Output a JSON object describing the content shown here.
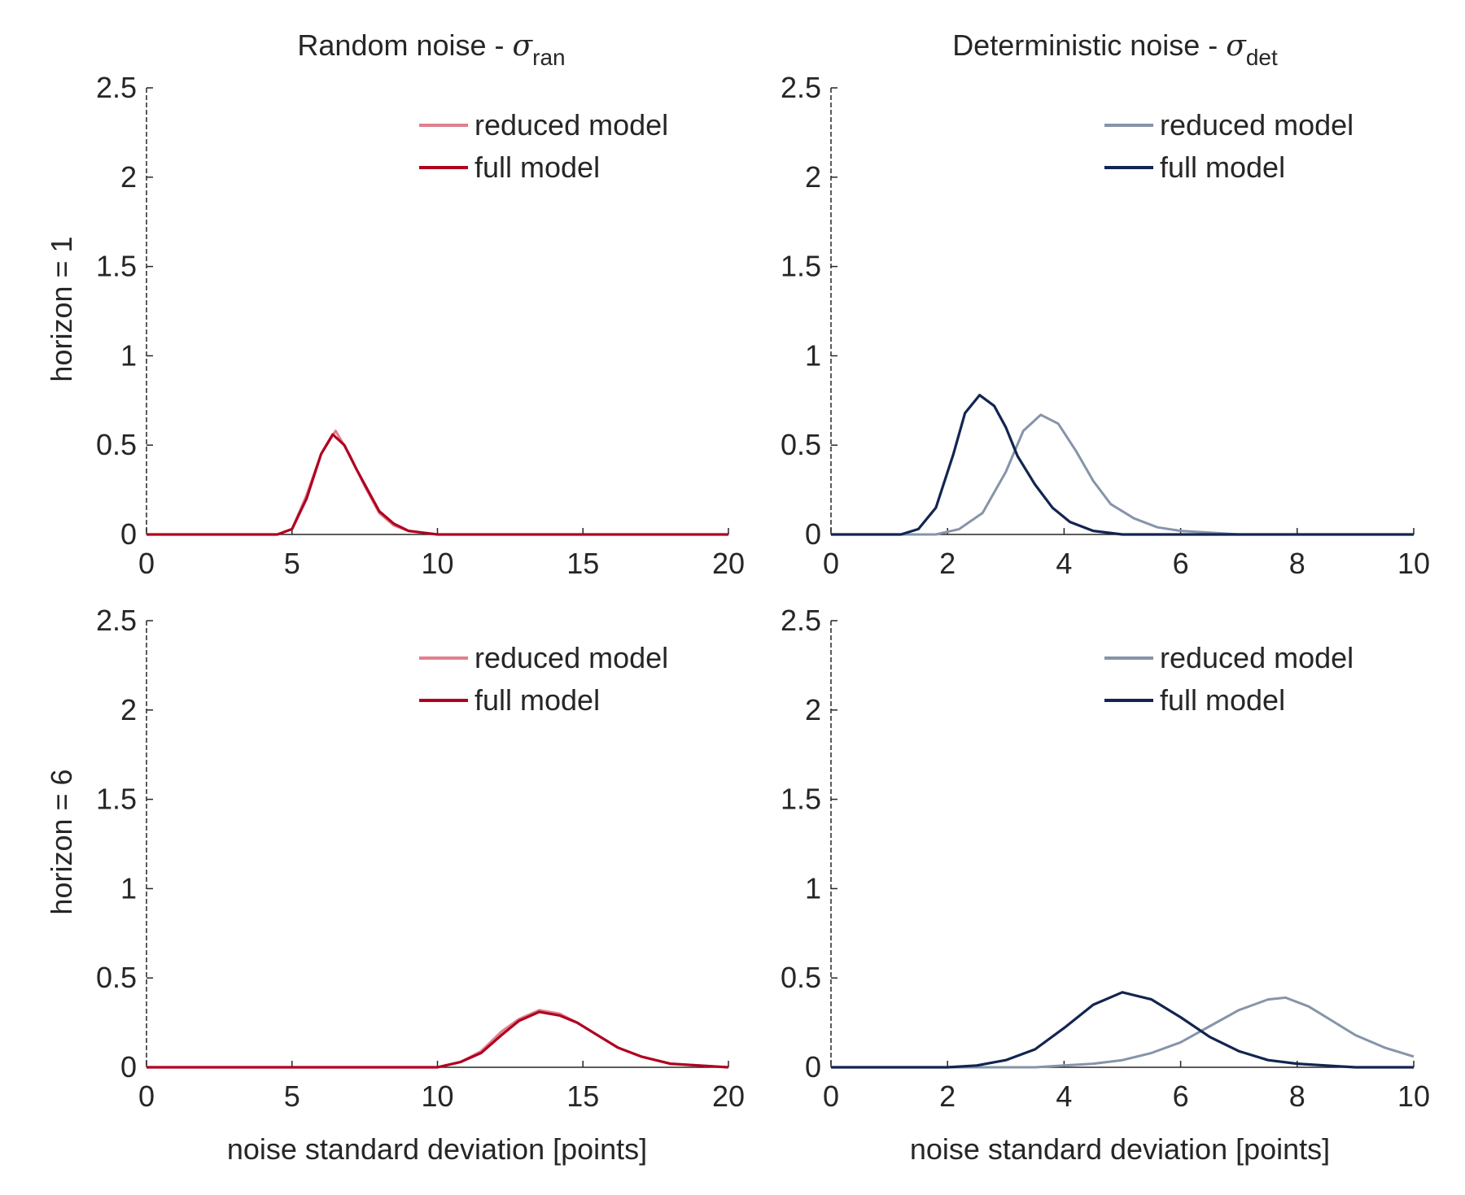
{
  "figure": {
    "column_titles": [
      {
        "main": "Random noise - ",
        "symbol": "σ",
        "subscript": "ran"
      },
      {
        "main": "Deterministic noise - ",
        "symbol": "σ",
        "subscript": "det"
      }
    ],
    "row_labels": [
      "horizon = 1",
      "horizon = 6"
    ],
    "xlabel": "noise standard deviation [points]",
    "legend": [
      "reduced model",
      "full model"
    ]
  },
  "colors": {
    "red_reduced": "#e0808e",
    "red_full": "#b00020",
    "blue_reduced": "#8694aa",
    "blue_full": "#122550",
    "axis": "#262626"
  },
  "chart_data": [
    {
      "type": "line",
      "panel": "top-left",
      "title": "Random noise - σran",
      "ylabel": "horizon = 1",
      "xlabel": "",
      "xlim": [
        0,
        20
      ],
      "ylim": [
        0,
        2.5
      ],
      "xticks": [
        "0",
        "5",
        "10",
        "15",
        "20"
      ],
      "yticks": [
        "0",
        "0.5",
        "1",
        "1.5",
        "2",
        "2.5"
      ],
      "grid": false,
      "legend_position": "top-right",
      "series": [
        {
          "name": "reduced model",
          "color": "#e0808e",
          "x": [
            0,
            4.5,
            5.0,
            5.5,
            6.0,
            6.5,
            7.0,
            7.5,
            8.0,
            8.5,
            9.0,
            9.5,
            10.0,
            20
          ],
          "y": [
            0,
            0,
            0.03,
            0.22,
            0.45,
            0.58,
            0.44,
            0.27,
            0.12,
            0.05,
            0.02,
            0.01,
            0,
            0
          ]
        },
        {
          "name": "full model",
          "color": "#b00020",
          "x": [
            0,
            4.5,
            5.0,
            5.5,
            6.0,
            6.4,
            6.8,
            7.2,
            7.6,
            8.0,
            8.5,
            9.0,
            9.5,
            10.0,
            20
          ],
          "y": [
            0,
            0,
            0.03,
            0.2,
            0.45,
            0.56,
            0.5,
            0.37,
            0.25,
            0.13,
            0.06,
            0.02,
            0.01,
            0,
            0
          ]
        }
      ]
    },
    {
      "type": "line",
      "panel": "top-right",
      "title": "Deterministic noise - σdet",
      "xlabel": "",
      "xlim": [
        0,
        10
      ],
      "ylim": [
        0,
        2.5
      ],
      "xticks": [
        "0",
        "2",
        "4",
        "6",
        "8",
        "10"
      ],
      "yticks": [
        "0",
        "0.5",
        "1",
        "1.5",
        "2",
        "2.5"
      ],
      "grid": false,
      "legend_position": "top-right",
      "series": [
        {
          "name": "reduced model",
          "color": "#8694aa",
          "x": [
            0,
            1.8,
            2.2,
            2.6,
            3.0,
            3.3,
            3.6,
            3.9,
            4.2,
            4.5,
            4.8,
            5.2,
            5.6,
            6.0,
            6.5,
            7.0,
            10
          ],
          "y": [
            0,
            0,
            0.03,
            0.12,
            0.35,
            0.58,
            0.67,
            0.62,
            0.47,
            0.3,
            0.17,
            0.09,
            0.04,
            0.02,
            0.01,
            0,
            0
          ]
        },
        {
          "name": "full model",
          "color": "#122550",
          "x": [
            0,
            1.2,
            1.5,
            1.8,
            2.1,
            2.3,
            2.55,
            2.8,
            3.0,
            3.2,
            3.5,
            3.8,
            4.1,
            4.5,
            5.0,
            10
          ],
          "y": [
            0,
            0,
            0.03,
            0.15,
            0.45,
            0.68,
            0.78,
            0.72,
            0.6,
            0.44,
            0.28,
            0.15,
            0.07,
            0.02,
            0,
            0
          ]
        }
      ]
    },
    {
      "type": "line",
      "panel": "bottom-left",
      "title": "",
      "ylabel": "horizon = 6",
      "xlabel": "noise standard deviation [points]",
      "xlim": [
        0,
        20
      ],
      "ylim": [
        0,
        2.5
      ],
      "xticks": [
        "0",
        "5",
        "10",
        "15",
        "20"
      ],
      "yticks": [
        "0",
        "0.5",
        "1",
        "1.5",
        "2",
        "2.5"
      ],
      "grid": false,
      "legend_position": "top-right",
      "series": [
        {
          "name": "reduced model",
          "color": "#e0808e",
          "x": [
            0,
            10.0,
            10.8,
            11.5,
            12.2,
            12.8,
            13.5,
            14.2,
            14.8,
            15.5,
            16.2,
            17.0,
            18.0,
            19.0,
            20
          ],
          "y": [
            0,
            0,
            0.03,
            0.09,
            0.2,
            0.27,
            0.32,
            0.3,
            0.25,
            0.18,
            0.11,
            0.06,
            0.02,
            0.01,
            0
          ]
        },
        {
          "name": "full model",
          "color": "#b00020",
          "x": [
            0,
            10.0,
            10.8,
            11.5,
            12.2,
            12.8,
            13.5,
            14.2,
            14.8,
            15.5,
            16.2,
            17.0,
            18.0,
            19.0,
            20
          ],
          "y": [
            0,
            0,
            0.03,
            0.08,
            0.18,
            0.26,
            0.31,
            0.29,
            0.25,
            0.18,
            0.11,
            0.06,
            0.02,
            0.01,
            0
          ]
        }
      ]
    },
    {
      "type": "line",
      "panel": "bottom-right",
      "title": "",
      "xlabel": "noise standard deviation [points]",
      "xlim": [
        0,
        10
      ],
      "ylim": [
        0,
        2.5
      ],
      "xticks": [
        "0",
        "2",
        "4",
        "6",
        "8",
        "10"
      ],
      "yticks": [
        "0",
        "0.5",
        "1",
        "1.5",
        "2",
        "2.5"
      ],
      "grid": false,
      "legend_position": "top-right",
      "series": [
        {
          "name": "reduced model",
          "color": "#8694aa",
          "x": [
            0,
            3.5,
            4.0,
            4.5,
            5.0,
            5.5,
            6.0,
            6.5,
            7.0,
            7.5,
            7.8,
            8.2,
            8.6,
            9.0,
            9.5,
            10
          ],
          "y": [
            0,
            0,
            0.01,
            0.02,
            0.04,
            0.08,
            0.14,
            0.23,
            0.32,
            0.38,
            0.39,
            0.34,
            0.26,
            0.18,
            0.11,
            0.06
          ]
        },
        {
          "name": "full model",
          "color": "#122550",
          "x": [
            0,
            2.0,
            2.5,
            3.0,
            3.5,
            4.0,
            4.5,
            5.0,
            5.5,
            6.0,
            6.5,
            7.0,
            7.5,
            8.0,
            8.5,
            9.0,
            10
          ],
          "y": [
            0,
            0,
            0.01,
            0.04,
            0.1,
            0.22,
            0.35,
            0.42,
            0.38,
            0.28,
            0.17,
            0.09,
            0.04,
            0.02,
            0.01,
            0,
            0
          ]
        }
      ]
    }
  ]
}
